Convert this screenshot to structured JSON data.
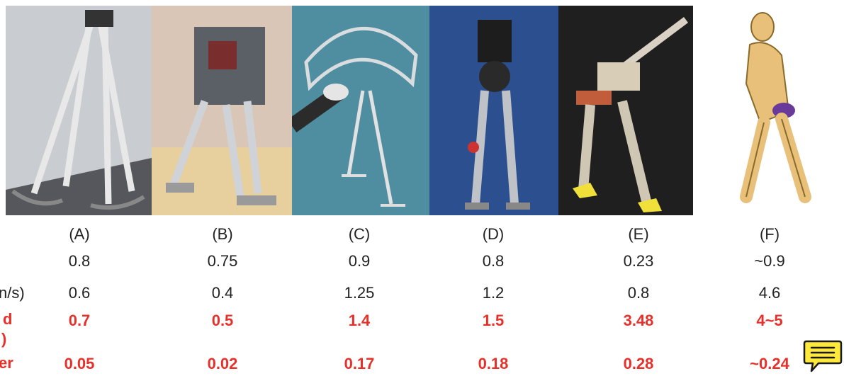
{
  "columns": [
    {
      "label": "(A)",
      "v1": "0.8",
      "v2": "0.6",
      "v3": "0.7",
      "v4": "0.05"
    },
    {
      "label": "(B)",
      "v1": "0.75",
      "v2": "0.4",
      "v3": "0.5",
      "v4": "0.02"
    },
    {
      "label": "(C)",
      "v1": "0.9",
      "v2": "1.25",
      "v3": "1.4",
      "v4": "0.17"
    },
    {
      "label": "(D)",
      "v1": "0.8",
      "v2": "1.2",
      "v3": "1.5",
      "v4": "0.18"
    },
    {
      "label": "(E)",
      "v1": "0.23",
      "v2": "0.8",
      "v3": "3.48",
      "v4": "0.28"
    },
    {
      "label": "(F)",
      "v1": "~0.9",
      "v2": "4.6",
      "v3": "4~5",
      "v4": "~0.24"
    }
  ],
  "row_labels": {
    "r2": "n/s)",
    "r3a": "d",
    "r3b": ")",
    "r4": "er"
  },
  "colors": {
    "highlight": "#e8302a",
    "note": "#ffe93b"
  },
  "icons": {
    "note": "speech-bubble-note-icon"
  }
}
